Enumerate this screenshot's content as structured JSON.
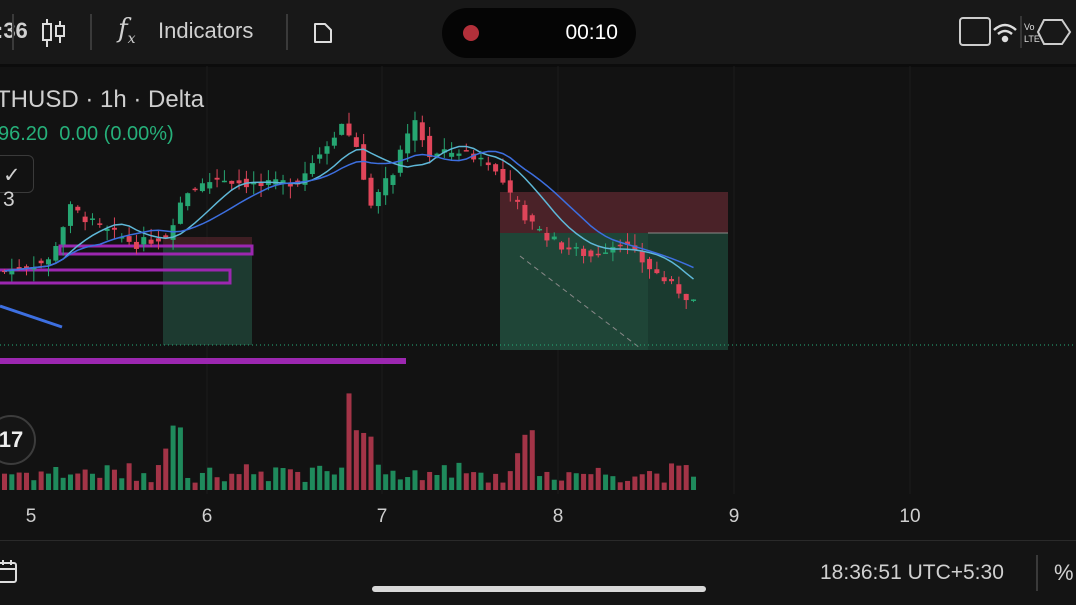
{
  "topbar": {
    "time_fragment": ":36",
    "indicators_label": "Indicators",
    "recording_time": "00:10",
    "icons": [
      "candlestick-icon",
      "function-icon",
      "document-icon",
      "screen-icon",
      "wifi-icon",
      "volte-icon",
      "signal-icon"
    ]
  },
  "legend": {
    "title": "THUSD · 1h · Delta",
    "price": "96.20",
    "change": "0.00 (0.00%)",
    "collapse_count": "3"
  },
  "colors": {
    "up": "#26a672",
    "down": "#e0455a",
    "ma_blue": "#3d6fe0",
    "ma_teal": "#5fb8d8",
    "drawing": "#9c27b0"
  },
  "chart": {
    "price_keypoints": [
      [
        0,
        85
      ],
      [
        6,
        95
      ],
      [
        9,
        148
      ],
      [
        13,
        128
      ],
      [
        18,
        112
      ],
      [
        22,
        120
      ],
      [
        25,
        165
      ],
      [
        29,
        178
      ],
      [
        35,
        170
      ],
      [
        40,
        175
      ],
      [
        46,
        232
      ],
      [
        48,
        210
      ],
      [
        50,
        150
      ],
      [
        53,
        185
      ],
      [
        56,
        235
      ],
      [
        58,
        200
      ],
      [
        62,
        205
      ],
      [
        66,
        195
      ],
      [
        69,
        160
      ],
      [
        72,
        130
      ],
      [
        76,
        110
      ],
      [
        80,
        100
      ],
      [
        84,
        115
      ],
      [
        88,
        88
      ],
      [
        91,
        70
      ],
      [
        94,
        55
      ]
    ],
    "volume_spikes": {
      "23": 70,
      "24": 68,
      "22": 45,
      "47": 105,
      "48": 65,
      "49": 62,
      "50": 58,
      "71": 60,
      "72": 65,
      "70": 40
    }
  },
  "xaxis": {
    "labels": [
      "5",
      "6",
      "7",
      "8",
      "9",
      "10"
    ]
  },
  "bottombar": {
    "timezone_clock": "18:36:51 UTC+5:30",
    "percent_label": "%"
  }
}
